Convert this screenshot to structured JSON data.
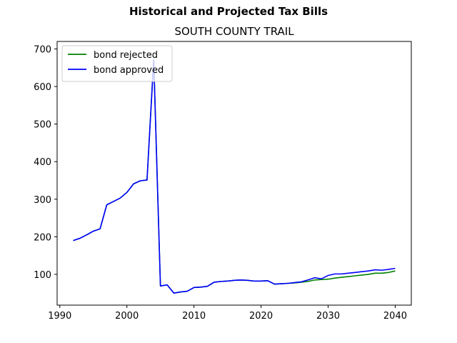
{
  "figure": {
    "suptitle": "Historical and Projected Tax Bills"
  },
  "chart_data": {
    "type": "line",
    "title": "SOUTH COUNTY TRAIL",
    "xlabel": "",
    "ylabel": "",
    "xlim": [
      1989.6,
      2042.4
    ],
    "ylim": [
      18,
      720
    ],
    "xticks": [
      1990,
      2000,
      2010,
      2020,
      2030,
      2040
    ],
    "yticks": [
      100,
      200,
      300,
      400,
      500,
      600,
      700
    ],
    "grid": false,
    "legend_position": "upper left",
    "series": [
      {
        "name": "bond rejected",
        "color": "#008000",
        "x": [
          1992,
          1993,
          1994,
          1995,
          1996,
          1997,
          1998,
          1999,
          2000,
          2001,
          2002,
          2003,
          2004,
          2005,
          2006,
          2007,
          2008,
          2009,
          2010,
          2011,
          2012,
          2013,
          2014,
          2015,
          2016,
          2017,
          2018,
          2019,
          2020,
          2021,
          2022,
          2023,
          2024,
          2025,
          2026,
          2027,
          2028,
          2029,
          2030,
          2031,
          2032,
          2033,
          2034,
          2035,
          2036,
          2037,
          2038,
          2039,
          2040
        ],
        "values": [
          190,
          196,
          205,
          215,
          221,
          285,
          294,
          303,
          318,
          341,
          349,
          351,
          672,
          69,
          72,
          50,
          53,
          55,
          65,
          66,
          68,
          79,
          81,
          82,
          84,
          85,
          84,
          82,
          82,
          83,
          74,
          75,
          76,
          77,
          79,
          81,
          85,
          86,
          87,
          90,
          92,
          94,
          96,
          98,
          100,
          103,
          103,
          105,
          109
        ]
      },
      {
        "name": "bond approved",
        "color": "#0000ff",
        "x": [
          1992,
          1993,
          1994,
          1995,
          1996,
          1997,
          1998,
          1999,
          2000,
          2001,
          2002,
          2003,
          2004,
          2005,
          2006,
          2007,
          2008,
          2009,
          2010,
          2011,
          2012,
          2013,
          2014,
          2015,
          2016,
          2017,
          2018,
          2019,
          2020,
          2021,
          2022,
          2023,
          2024,
          2025,
          2026,
          2027,
          2028,
          2029,
          2030,
          2031,
          2032,
          2033,
          2034,
          2035,
          2036,
          2037,
          2038,
          2039,
          2040
        ],
        "values": [
          190,
          196,
          205,
          215,
          221,
          285,
          294,
          303,
          318,
          341,
          349,
          351,
          672,
          69,
          72,
          50,
          53,
          55,
          65,
          66,
          68,
          79,
          81,
          82,
          84,
          85,
          84,
          82,
          82,
          83,
          74,
          75,
          76,
          78,
          80,
          85,
          91,
          88,
          97,
          101,
          101,
          103,
          105,
          107,
          109,
          112,
          111,
          113,
          116
        ]
      }
    ]
  }
}
